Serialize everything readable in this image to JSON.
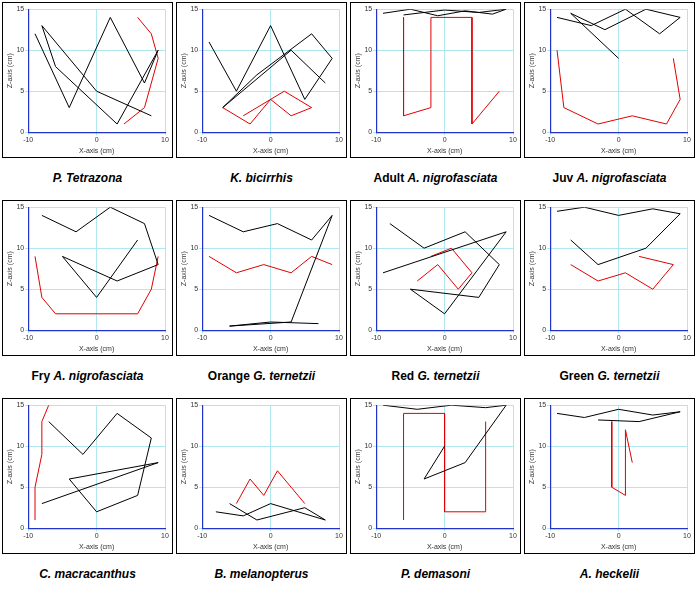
{
  "chart_data": [
    {
      "type": "line",
      "title": "P. Tetrazona",
      "xlabel": "X-axis (cm)",
      "ylabel": "Z-axis (cm)",
      "xlim": [
        -10,
        10
      ],
      "xticks": [
        -10,
        0,
        10
      ],
      "ylim": [
        0,
        15
      ],
      "yticks": [
        0,
        5,
        10,
        15
      ],
      "grid": true,
      "series": [
        {
          "color": "#000000",
          "x": [
            -9,
            -4,
            2,
            7,
            9,
            3,
            -6,
            -8,
            0,
            8
          ],
          "values": [
            12,
            3,
            14,
            6,
            10,
            1,
            8,
            13,
            5,
            2
          ]
        },
        {
          "color": "#e00000",
          "x": [
            4,
            7,
            8,
            9,
            8,
            6
          ],
          "values": [
            1,
            3,
            6,
            9,
            12,
            14
          ]
        }
      ]
    },
    {
      "type": "line",
      "title": "K. bicirrhis",
      "xlabel": "X-axis (cm)",
      "ylabel": "Z-axis (cm)",
      "xlim": [
        -10,
        10
      ],
      "xticks": [
        -10,
        0,
        10
      ],
      "ylim": [
        0,
        15
      ],
      "yticks": [
        0,
        5,
        10,
        15
      ],
      "grid": true,
      "series": [
        {
          "color": "#000000",
          "x": [
            -9,
            -5,
            0,
            5,
            9,
            6,
            -2,
            -7,
            3,
            8
          ],
          "values": [
            11,
            5,
            13,
            4,
            9,
            12,
            7,
            3,
            10,
            6
          ]
        },
        {
          "color": "#e00000",
          "x": [
            -7,
            -3,
            0,
            3,
            6,
            2,
            -4
          ],
          "values": [
            3,
            1,
            4,
            2,
            3,
            5,
            2
          ]
        }
      ]
    },
    {
      "type": "line",
      "title": "Adult A. nigrofasciata",
      "xlabel": "X-axis (cm)",
      "ylabel": "Z-axis (cm)",
      "xlim": [
        -10,
        10
      ],
      "xticks": [
        -10,
        0,
        10
      ],
      "ylim": [
        0,
        15
      ],
      "yticks": [
        0,
        5,
        10,
        15
      ],
      "grid": true,
      "series": [
        {
          "color": "#000000",
          "x": [
            -9,
            -5,
            -1,
            3,
            7,
            9,
            5,
            0,
            -6
          ],
          "values": [
            14.5,
            15,
            14.2,
            14.8,
            14.4,
            15,
            14.6,
            14.9,
            14.3
          ]
        },
        {
          "color": "#e00000",
          "x": [
            -6,
            -6,
            -2,
            -2,
            4,
            4,
            8
          ],
          "values": [
            14,
            2,
            3,
            14,
            14,
            1,
            5
          ]
        }
      ]
    },
    {
      "type": "line",
      "title": "Juv A. nigrofasciata",
      "xlabel": "X-axis (cm)",
      "ylabel": "Z-axis (cm)",
      "xlim": [
        -10,
        10
      ],
      "xticks": [
        -10,
        0,
        10
      ],
      "ylim": [
        0,
        15
      ],
      "yticks": [
        0,
        5,
        10,
        15
      ],
      "grid": true,
      "series": [
        {
          "color": "#000000",
          "x": [
            -9,
            -4,
            1,
            6,
            9,
            4,
            -2,
            -7,
            0
          ],
          "values": [
            14,
            13,
            15,
            12,
            14,
            15,
            12.5,
            14.5,
            9
          ]
        },
        {
          "color": "#e00000",
          "x": [
            -9,
            -8,
            -3,
            2,
            7,
            9,
            8
          ],
          "values": [
            10,
            3,
            1,
            2,
            1,
            4,
            9
          ]
        }
      ]
    },
    {
      "type": "line",
      "title": "Fry A. nigrofasciata",
      "xlabel": "X-axis (cm)",
      "ylabel": "Z-axis (cm)",
      "xlim": [
        -10,
        10
      ],
      "xticks": [
        -10,
        0,
        10
      ],
      "ylim": [
        0,
        15
      ],
      "yticks": [
        0,
        5,
        10,
        15
      ],
      "grid": true,
      "series": [
        {
          "color": "#000000",
          "x": [
            -8,
            -3,
            2,
            7,
            9,
            3,
            -5,
            0,
            6
          ],
          "values": [
            14,
            12,
            15,
            13,
            8,
            6,
            9,
            4,
            11
          ]
        },
        {
          "color": "#e00000",
          "x": [
            -9,
            -8,
            -6,
            6,
            8,
            9
          ],
          "values": [
            9,
            4,
            2,
            2,
            5,
            9
          ]
        }
      ]
    },
    {
      "type": "line",
      "title": "Orange G. ternetzii",
      "xlabel": "X-axis (cm)",
      "ylabel": "Z-axis (cm)",
      "xlim": [
        -10,
        10
      ],
      "xticks": [
        -10,
        0,
        10
      ],
      "ylim": [
        0,
        15
      ],
      "yticks": [
        0,
        5,
        10,
        15
      ],
      "grid": true,
      "series": [
        {
          "color": "#000000",
          "x": [
            -9,
            -4,
            1,
            6,
            9,
            3,
            -6,
            0,
            7
          ],
          "values": [
            14,
            12,
            13,
            11,
            14,
            1,
            0.5,
            1,
            0.8
          ]
        },
        {
          "color": "#e00000",
          "x": [
            -9,
            -5,
            -1,
            3,
            6,
            9
          ],
          "values": [
            9,
            7,
            8,
            7,
            9,
            8
          ]
        }
      ]
    },
    {
      "type": "line",
      "title": "Red G. ternetzii",
      "xlabel": "X-axis (cm)",
      "ylabel": "Z-axis (cm)",
      "xlim": [
        -10,
        10
      ],
      "xticks": [
        -10,
        0,
        10
      ],
      "ylim": [
        0,
        15
      ],
      "yticks": [
        0,
        5,
        10,
        15
      ],
      "grid": true,
      "series": [
        {
          "color": "#000000",
          "x": [
            -8,
            -3,
            3,
            8,
            5,
            -5,
            0,
            9,
            -9
          ],
          "values": [
            13,
            10,
            12,
            8,
            4,
            5,
            2,
            12,
            7
          ]
        },
        {
          "color": "#e00000",
          "x": [
            -4,
            -1,
            2,
            4,
            1,
            -2
          ],
          "values": [
            6,
            8,
            5,
            7,
            10,
            9
          ]
        }
      ]
    },
    {
      "type": "line",
      "title": "Green G. ternetzii",
      "xlabel": "X-axis (cm)",
      "ylabel": "Z-axis (cm)",
      "xlim": [
        -10,
        10
      ],
      "xticks": [
        -10,
        0,
        10
      ],
      "ylim": [
        0,
        15
      ],
      "yticks": [
        0,
        5,
        10,
        15
      ],
      "grid": true,
      "series": [
        {
          "color": "#000000",
          "x": [
            -9,
            -5,
            0,
            5,
            9,
            4,
            -3,
            -7
          ],
          "values": [
            14.5,
            15,
            14,
            14.8,
            14.2,
            10,
            8,
            11
          ]
        },
        {
          "color": "#e00000",
          "x": [
            -7,
            -3,
            1,
            5,
            8,
            3
          ],
          "values": [
            8,
            6,
            7,
            5,
            8,
            9
          ]
        }
      ]
    },
    {
      "type": "line",
      "title": "C. macracanthus",
      "xlabel": "X-axis (cm)",
      "ylabel": "Z-axis (cm)",
      "xlim": [
        -10,
        10
      ],
      "xticks": [
        -10,
        0,
        10
      ],
      "ylim": [
        0,
        15
      ],
      "yticks": [
        0,
        5,
        10,
        15
      ],
      "grid": true,
      "series": [
        {
          "color": "#000000",
          "x": [
            -7,
            -2,
            3,
            8,
            6,
            0,
            -4,
            9,
            -8
          ],
          "values": [
            13,
            9,
            14,
            11,
            4,
            2,
            6,
            8,
            3
          ]
        },
        {
          "color": "#e00000",
          "x": [
            -9,
            -9,
            -8,
            -8,
            -7
          ],
          "values": [
            1,
            5,
            9,
            13,
            15
          ]
        }
      ]
    },
    {
      "type": "line",
      "title": "B. melanopterus",
      "xlabel": "X-axis (cm)",
      "ylabel": "Z-axis (cm)",
      "xlim": [
        -10,
        10
      ],
      "xticks": [
        -10,
        0,
        10
      ],
      "ylim": [
        0,
        15
      ],
      "yticks": [
        0,
        5,
        10,
        15
      ],
      "grid": true,
      "series": [
        {
          "color": "#000000",
          "x": [
            -8,
            -4,
            0,
            4,
            8,
            5,
            -2,
            -6
          ],
          "values": [
            2,
            1.5,
            3,
            2,
            1,
            2.5,
            1,
            3
          ]
        },
        {
          "color": "#e00000",
          "x": [
            -5,
            -3,
            -1,
            1,
            3,
            5
          ],
          "values": [
            3,
            6,
            4,
            7,
            5,
            3
          ]
        }
      ]
    },
    {
      "type": "line",
      "title": "P. demasoni",
      "xlabel": "X-axis (cm)",
      "ylabel": "Z-axis (cm)",
      "xlim": [
        -10,
        10
      ],
      "xticks": [
        -10,
        0,
        10
      ],
      "ylim": [
        0,
        15
      ],
      "yticks": [
        0,
        5,
        10,
        15
      ],
      "grid": true,
      "series": [
        {
          "color": "#000000",
          "x": [
            -9,
            -4,
            1,
            6,
            9,
            3,
            -3,
            0
          ],
          "values": [
            15,
            14.5,
            15,
            14.7,
            15,
            8,
            6,
            10
          ]
        },
        {
          "color": "#e00000",
          "x": [
            -6,
            -6,
            0,
            0,
            6,
            6
          ],
          "values": [
            1,
            14,
            14,
            2,
            2,
            13
          ]
        }
      ]
    },
    {
      "type": "line",
      "title": "A. heckelii",
      "xlabel": "X-axis (cm)",
      "ylabel": "Z-axis (cm)",
      "xlim": [
        -10,
        10
      ],
      "xticks": [
        -10,
        0,
        10
      ],
      "ylim": [
        0,
        15
      ],
      "yticks": [
        0,
        5,
        10,
        15
      ],
      "grid": true,
      "series": [
        {
          "color": "#000000",
          "x": [
            -9,
            -5,
            0,
            5,
            9,
            3,
            -3
          ],
          "values": [
            14,
            13.5,
            14.5,
            13.8,
            14.2,
            13,
            13.2
          ]
        },
        {
          "color": "#e00000",
          "x": [
            -1,
            -1,
            1,
            1,
            2
          ],
          "values": [
            13,
            5,
            4,
            12,
            8
          ]
        }
      ]
    }
  ]
}
